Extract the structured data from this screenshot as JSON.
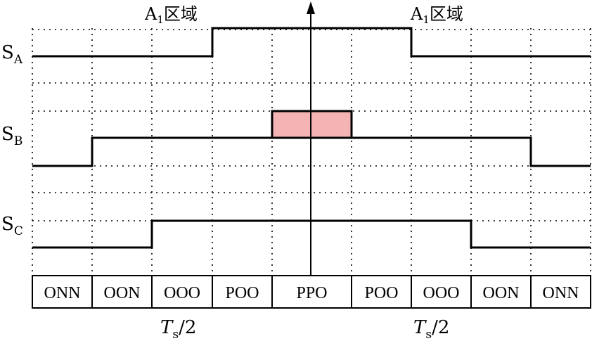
{
  "top_labels": {
    "left": {
      "main": "A",
      "sub": "1",
      "rest": "区域"
    },
    "right": {
      "main": "A",
      "sub": "1",
      "rest": "区域"
    }
  },
  "signals": [
    {
      "main": "S",
      "sub": "A"
    },
    {
      "main": "S",
      "sub": "B"
    },
    {
      "main": "S",
      "sub": "C"
    }
  ],
  "states": [
    "ONN",
    "OON",
    "OOO",
    "POO",
    "PPO",
    "POO",
    "OOO",
    "OON",
    "ONN"
  ],
  "period_labels": {
    "left": {
      "main": "T",
      "sub": "s",
      "rest": "/2"
    },
    "right": {
      "main": "T",
      "sub": "s",
      "rest": "/2"
    }
  },
  "highlight_color": "#f4b4b4"
}
